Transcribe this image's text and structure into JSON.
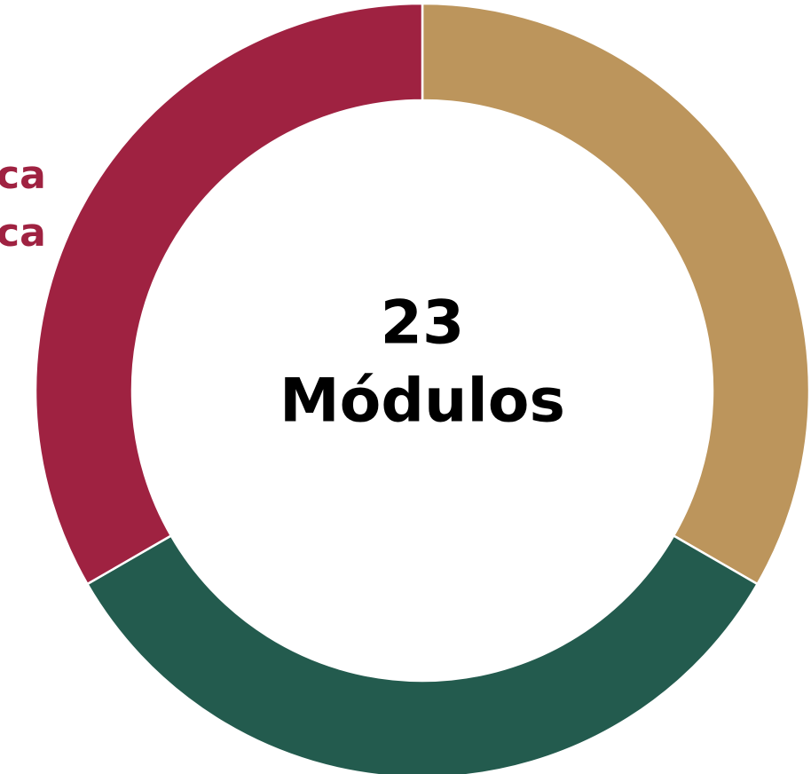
{
  "chart_data": {
    "type": "donut",
    "values": [
      33.3,
      33.3,
      33.3
    ],
    "colors": [
      "#bc955c",
      "#235b4e",
      "#9f2241"
    ],
    "center_value": 23,
    "center_label": "Módulos",
    "annotations": [
      "ca",
      "ca"
    ],
    "annotation_color": "#9f2241"
  }
}
